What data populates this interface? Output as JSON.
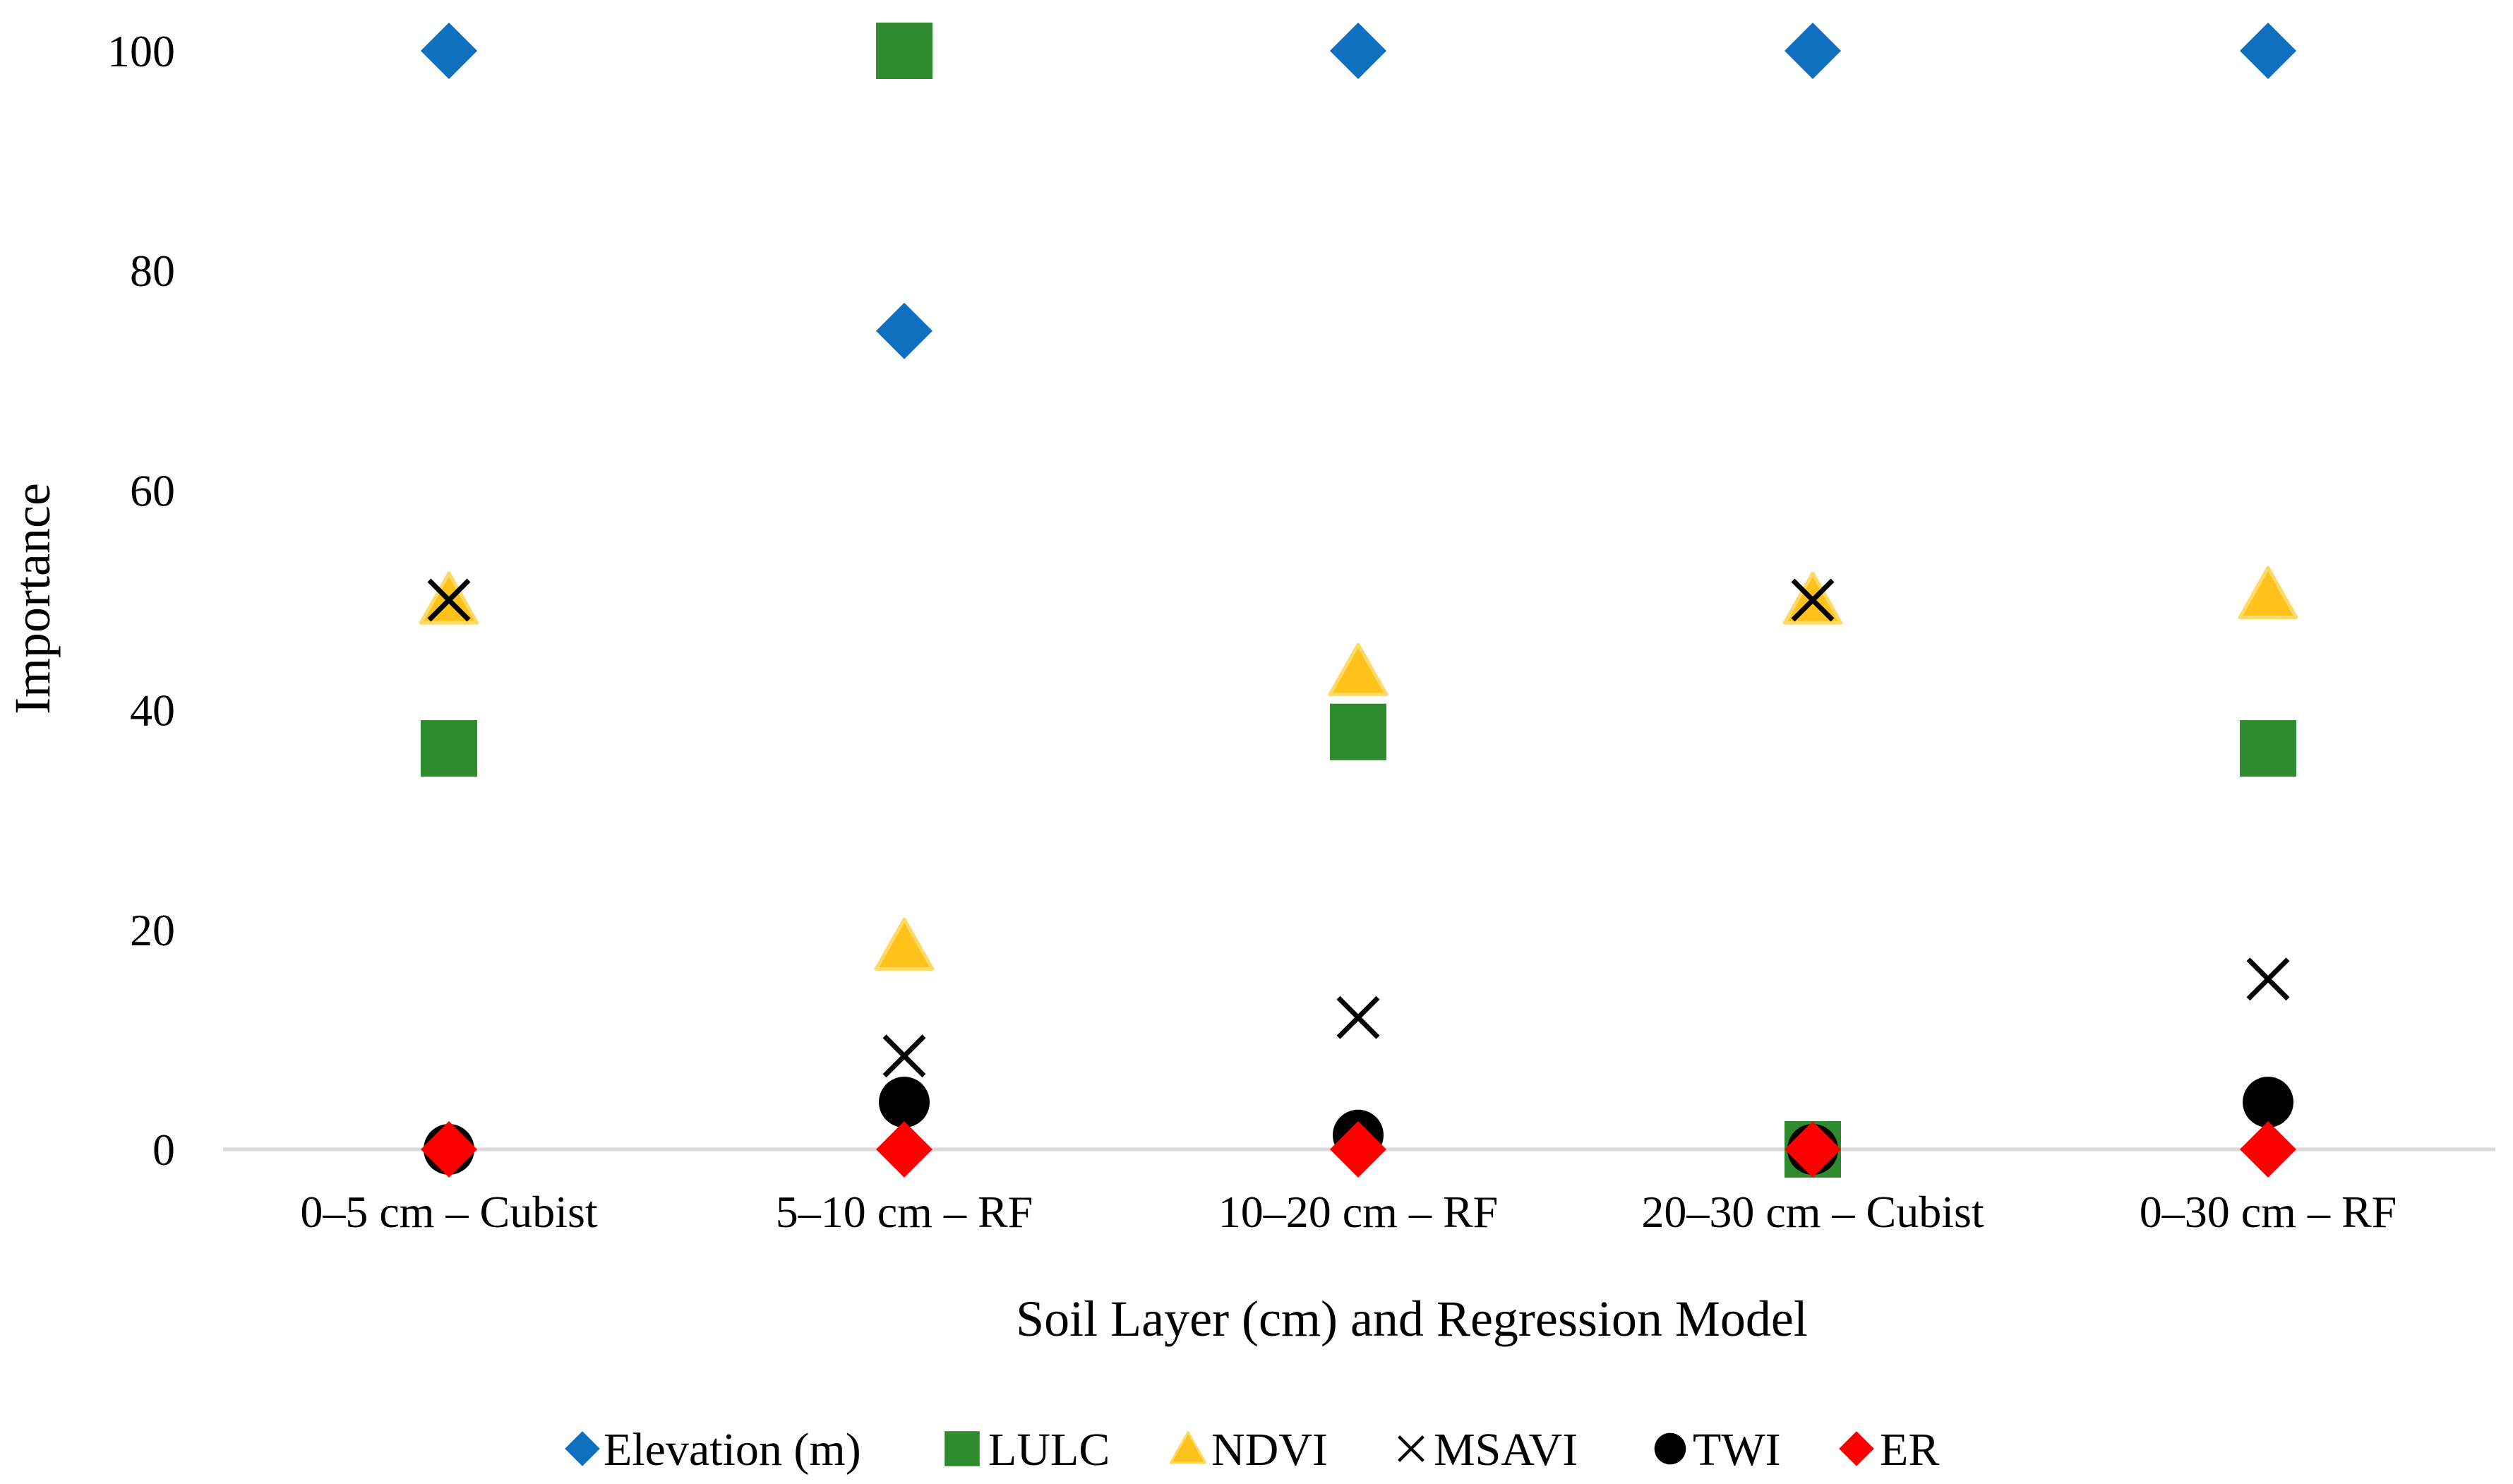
{
  "chart_data": {
    "type": "scatter",
    "title": "",
    "xlabel": "Soil Layer (cm) and Regression Model",
    "ylabel": "Importance",
    "ylim": [
      0,
      100
    ],
    "yticks": [
      "0",
      "20",
      "40",
      "60",
      "80",
      "100"
    ],
    "categories": [
      "0–5 cm – Cubist",
      "5–10 cm – RF",
      "10–20 cm – RF",
      "20–30 cm – Cubist",
      "0–30 cm – RF"
    ],
    "grid": false,
    "legend_position": "bottom",
    "series": [
      {
        "name": "Elevation (m)",
        "marker": "diamond",
        "color": "#1070C0",
        "values": [
          100,
          74.5,
          100,
          100,
          100
        ]
      },
      {
        "name": "LULC",
        "marker": "square",
        "color": "#2E8B2E",
        "values": [
          36.5,
          100,
          38,
          0,
          36.5
        ]
      },
      {
        "name": "NDVI",
        "marker": "triangle",
        "color": "#FFC21A",
        "values": [
          50,
          18.5,
          43.5,
          50,
          50.5
        ]
      },
      {
        "name": "MSAVI",
        "marker": "x",
        "color": "#000000",
        "values": [
          50,
          8.5,
          12,
          50,
          15.5
        ]
      },
      {
        "name": "TWI",
        "marker": "circle",
        "color": "#000000",
        "values": [
          0,
          4.3,
          1.3,
          0,
          4.3
        ]
      },
      {
        "name": "ER",
        "marker": "diamond",
        "color": "#FF0000",
        "values": [
          0,
          0,
          0,
          0,
          0
        ]
      }
    ]
  }
}
